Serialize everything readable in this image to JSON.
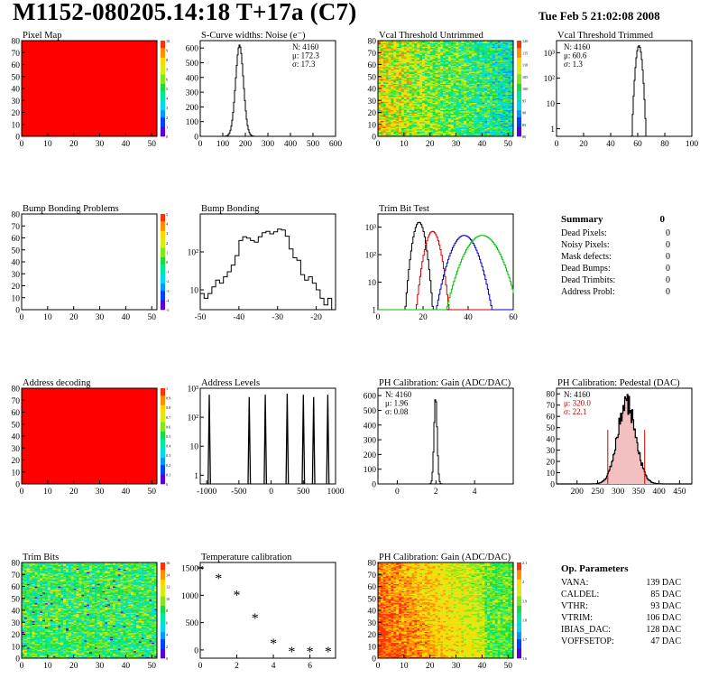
{
  "header": {
    "title": "M1152-080205.14:18 T+17a (C7)",
    "date": "Tue Feb  5 21:02:08 2008"
  },
  "palette": {
    "rainbow": [
      "#5a00d0",
      "#0040ff",
      "#0098ff",
      "#00d8f0",
      "#00e8a0",
      "#10e040",
      "#80e818",
      "#d8ec10",
      "#ffd800",
      "#ff9000",
      "#ff3000"
    ],
    "red": "#ff0000",
    "hist_blue": "#0000cc",
    "hist_green": "#00c000",
    "hist_red": "#cc0000"
  },
  "panels": [
    {
      "id": "pixel-map",
      "chart_data": {
        "type": "heatmap",
        "title": "Pixel Map",
        "xlim": [
          0,
          52
        ],
        "ylim": [
          0,
          80
        ],
        "xticks": [
          0,
          10,
          20,
          30,
          40,
          50
        ],
        "yticks": [
          0,
          10,
          20,
          30,
          40,
          50,
          60,
          70,
          80
        ],
        "fill": "uniform-max",
        "palette": {
          "min": 0,
          "max": 10,
          "labels": [
            "0",
            "1",
            "2",
            "3",
            "4",
            "5",
            "6",
            "7",
            "8",
            "9",
            "10"
          ]
        }
      }
    },
    {
      "id": "scurve-widths",
      "chart_data": {
        "type": "bar",
        "title": "S-Curve widths: Noise (e⁻)",
        "xlim": [
          0,
          600
        ],
        "ylim": [
          0,
          650
        ],
        "xticks": [
          0,
          100,
          200,
          300,
          400,
          500,
          600
        ],
        "yticks": [
          0,
          100,
          200,
          300,
          400,
          500,
          600
        ],
        "stats": [
          "N: 4160",
          "μ: 172.3",
          "σ: 17.3"
        ],
        "gauss": {
          "mean": 172.3,
          "sigma": 17.3,
          "peak": 620
        }
      }
    },
    {
      "id": "vcal-untrimmed",
      "chart_data": {
        "type": "heatmap",
        "title": "Vcal Threshold Untrimmed",
        "xlim": [
          0,
          52
        ],
        "ylim": [
          0,
          80
        ],
        "xticks": [
          0,
          10,
          20,
          30,
          40,
          50
        ],
        "yticks": [
          0,
          10,
          20,
          30,
          40,
          50,
          60,
          70,
          80
        ],
        "fill": "gradient-x",
        "palette": {
          "min": 80,
          "max": 120,
          "labels": [
            "80",
            "85",
            "90",
            "95",
            "100",
            "105",
            "110",
            "115",
            "120"
          ]
        }
      }
    },
    {
      "id": "vcal-trimmed",
      "chart_data": {
        "type": "bar",
        "title": "Vcal Threshold Trimmed",
        "log_y": true,
        "xlim": [
          0,
          100
        ],
        "ylim": [
          0.5,
          3000
        ],
        "xticks": [
          0,
          20,
          40,
          60,
          80,
          100
        ],
        "yticks": [
          1,
          10,
          100,
          1000
        ],
        "ytick_labels": [
          "1",
          "10",
          "10²",
          "10³"
        ],
        "stats": [
          "N: 4160",
          "μ: 60.6",
          "σ: 1.3"
        ],
        "gauss": {
          "mean": 60.6,
          "sigma": 1.3,
          "peak": 1900
        }
      }
    },
    {
      "id": "bump-bonding-problems",
      "chart_data": {
        "type": "heatmap",
        "title": "Bump Bonding Problems",
        "xlim": [
          0,
          52
        ],
        "ylim": [
          0,
          80
        ],
        "xticks": [
          0,
          10,
          20,
          30,
          40,
          50
        ],
        "yticks": [
          0,
          10,
          20,
          30,
          40,
          50,
          60,
          70,
          80
        ],
        "fill": "empty",
        "palette": {
          "min": -5,
          "max": 5,
          "labels": [
            "-5",
            "-4",
            "-3",
            "-2",
            "-1",
            "0",
            "1",
            "2",
            "3",
            "4",
            "5"
          ]
        }
      }
    },
    {
      "id": "bump-bonding",
      "chart_data": {
        "type": "bar",
        "title": "Bump Bonding",
        "log_y": true,
        "xlim": [
          -50,
          -15
        ],
        "ylim": [
          3,
          1000
        ],
        "xticks": [
          -50,
          -40,
          -30,
          -20
        ],
        "yticks": [
          10,
          100
        ],
        "ytick_labels": [
          "10",
          "10²"
        ],
        "x": [
          -50,
          -49,
          -48,
          -47,
          -46,
          -45,
          -44,
          -43,
          -42,
          -41,
          -40,
          -39,
          -38,
          -37,
          -36,
          -35,
          -34,
          -33,
          -32,
          -31,
          -30,
          -29,
          -28,
          -27,
          -26,
          -25,
          -24,
          -23,
          -22,
          -21,
          -20,
          -19,
          -18,
          -17
        ],
        "values": [
          8,
          6,
          8,
          12,
          18,
          15,
          22,
          30,
          45,
          80,
          200,
          250,
          230,
          200,
          180,
          250,
          320,
          350,
          300,
          340,
          400,
          380,
          260,
          120,
          70,
          60,
          25,
          18,
          22,
          15,
          10,
          6,
          4,
          6
        ]
      }
    },
    {
      "id": "trim-bit-test",
      "chart_data": {
        "type": "line",
        "title": "Trim Bit Test",
        "log_y": true,
        "xlim": [
          0,
          60
        ],
        "ylim": [
          1,
          3000
        ],
        "xticks": [
          0,
          20,
          40,
          60
        ],
        "yticks": [
          1,
          10,
          100,
          1000
        ],
        "ytick_labels": [
          "1",
          "10",
          "10²",
          "10³"
        ],
        "series": [
          {
            "color": "#000000",
            "mean": 18,
            "sigma": 1.6,
            "peak": 1500
          },
          {
            "color": "#cc0000",
            "mean": 24,
            "sigma": 2.0,
            "peak": 700
          },
          {
            "color": "#0000cc",
            "mean": 38,
            "sigma": 3.5,
            "peak": 500
          },
          {
            "color": "#00c000",
            "mean": 46,
            "sigma": 4.5,
            "peak": 500
          }
        ]
      }
    },
    {
      "id": "address-decoding",
      "chart_data": {
        "type": "heatmap",
        "title": "Address decoding",
        "xlim": [
          0,
          52
        ],
        "ylim": [
          0,
          80
        ],
        "xticks": [
          0,
          10,
          20,
          30,
          40,
          50
        ],
        "yticks": [
          0,
          10,
          20,
          30,
          40,
          50,
          60,
          70,
          80
        ],
        "fill": "uniform-max",
        "palette": {
          "min": 0,
          "max": 1,
          "labels": [
            "0",
            "0.1",
            "0.2",
            "0.3",
            "0.4",
            "0.5",
            "0.6",
            "0.7",
            "0.8",
            "0.9",
            "1"
          ]
        }
      }
    },
    {
      "id": "address-levels",
      "chart_data": {
        "type": "bar",
        "title": "Address Levels",
        "log_y": true,
        "xlim": [
          -1100,
          1000
        ],
        "ylim": [
          0.5,
          1000
        ],
        "xticks": [
          -1000,
          -500,
          0,
          500,
          1000
        ],
        "yticks": [
          1,
          10,
          100,
          1000
        ],
        "ytick_labels": [
          "1",
          "10",
          "10²",
          "10³"
        ],
        "peaks": [
          {
            "x": -960,
            "height": 600
          },
          {
            "x": -340,
            "height": 500
          },
          {
            "x": -90,
            "height": 600
          },
          {
            "x": 250,
            "height": 650
          },
          {
            "x": 500,
            "height": 600
          },
          {
            "x": 660,
            "height": 500
          },
          {
            "x": 880,
            "height": 600
          }
        ]
      }
    },
    {
      "id": "ph-gain",
      "chart_data": {
        "type": "bar",
        "title": "PH Calibration: Gain (ADC/DAC)",
        "xlim": [
          -1,
          6
        ],
        "ylim": [
          0,
          650
        ],
        "xticks": [
          0,
          2,
          4
        ],
        "yticks": [
          0,
          100,
          200,
          300,
          400,
          500,
          600
        ],
        "stats": [
          "N: 4160",
          "μ: 1.96",
          "σ: 0.08"
        ],
        "gauss": {
          "mean": 1.96,
          "sigma": 0.08,
          "peak": 590
        }
      }
    },
    {
      "id": "ph-pedestal",
      "chart_data": {
        "type": "bar",
        "title": "PH Calibration: Pedestal (DAC)",
        "xlim": [
          150,
          480
        ],
        "ylim": [
          0,
          85
        ],
        "xticks": [
          200,
          250,
          300,
          350,
          400,
          450
        ],
        "yticks": [
          0,
          10,
          20,
          30,
          40,
          50,
          60,
          70,
          80
        ],
        "stats": [
          "N: 4160",
          "μ: 320.0",
          "σ: 22.1"
        ],
        "stats_colors": [
          "#000000",
          "#cc0000",
          "#cc0000"
        ],
        "gauss": {
          "mean": 320.0,
          "sigma": 22.1,
          "peak": 72
        },
        "cut_lines": [
          275,
          365
        ]
      }
    },
    {
      "id": "trim-bits",
      "chart_data": {
        "type": "heatmap",
        "title": "Trim Bits",
        "xlim": [
          0,
          52
        ],
        "ylim": [
          0,
          80
        ],
        "xticks": [
          0,
          10,
          20,
          30,
          40,
          50
        ],
        "yticks": [
          0,
          10,
          20,
          30,
          40,
          50,
          60,
          70,
          80
        ],
        "fill": "noise-mid",
        "palette": {
          "min": 0,
          "max": 16,
          "labels": [
            "0",
            "2",
            "4",
            "6",
            "8",
            "10",
            "12",
            "14",
            "16"
          ]
        }
      }
    },
    {
      "id": "temperature-calibration",
      "chart_data": {
        "type": "scatter",
        "title": "Temperature calibration",
        "xlim": [
          0,
          7.4
        ],
        "ylim": [
          -150,
          1600
        ],
        "xticks": [
          0,
          2,
          4,
          6
        ],
        "yticks": [
          0,
          500,
          1000,
          1500
        ],
        "x": [
          0,
          1,
          2,
          3,
          4,
          5,
          6,
          7
        ],
        "y": [
          1480,
          1320,
          1010,
          590,
          130,
          -20,
          -20,
          -20
        ]
      }
    },
    {
      "id": "ph-gain-map",
      "chart_data": {
        "type": "heatmap",
        "title": "PH Calibration: Gain (ADC/DAC)",
        "xlim": [
          0,
          52
        ],
        "ylim": [
          0,
          80
        ],
        "xticks": [
          0,
          10,
          20,
          30,
          40,
          50
        ],
        "yticks": [
          0,
          10,
          20,
          30,
          40,
          50,
          60,
          70,
          80
        ],
        "fill": "gradient-warm",
        "palette": {
          "min": 1.6,
          "max": 2.1,
          "labels": [
            "1.6",
            "1.7",
            "1.8",
            "1.9",
            "2",
            "2.1"
          ]
        }
      }
    }
  ],
  "summary": {
    "title": "Summary",
    "total": "0",
    "rows": [
      {
        "label": "Dead Pixels:",
        "value": "0"
      },
      {
        "label": "Noisy Pixels:",
        "value": "0"
      },
      {
        "label": "Mask defects:",
        "value": "0"
      },
      {
        "label": "Dead Bumps:",
        "value": "0"
      },
      {
        "label": "Dead Trimbits:",
        "value": "0"
      },
      {
        "label": "Address Probl:",
        "value": "0"
      }
    ]
  },
  "op_parameters": {
    "title": "Op. Parameters",
    "rows": [
      {
        "label": "VANA:",
        "value": "139 DAC"
      },
      {
        "label": "CALDEL:",
        "value": "85 DAC"
      },
      {
        "label": "VTHR:",
        "value": "93 DAC"
      },
      {
        "label": "VTRIM:",
        "value": "106 DAC"
      },
      {
        "label": "IBIAS_DAC:",
        "value": "128 DAC"
      },
      {
        "label": "VOFFSETOP:",
        "value": "47 DAC"
      }
    ]
  }
}
